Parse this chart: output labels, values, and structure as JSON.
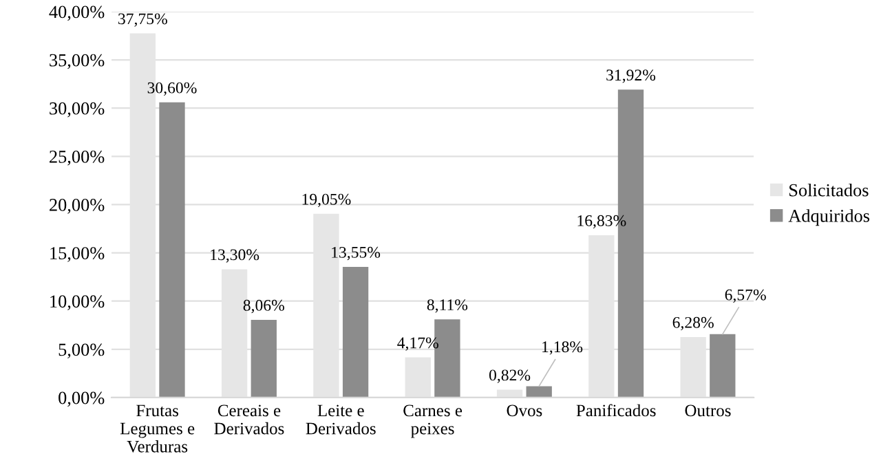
{
  "chart_data": {
    "type": "bar",
    "categories": [
      "Frutas\nLegumes e\nVerduras",
      "Cereais e\nDerivados",
      "Leite e\nDerivados",
      "Carnes e\npeixes",
      "Ovos",
      "Panificados",
      "Outros"
    ],
    "series": [
      {
        "name": "Solicitados",
        "color": "#e6e6e6",
        "values": [
          37.75,
          13.3,
          19.05,
          4.17,
          0.82,
          16.83,
          6.28
        ],
        "value_labels": [
          "37,75%",
          "13,30%",
          "19,05%",
          "4,17%",
          "0,82%",
          "16,83%",
          "6,28%"
        ]
      },
      {
        "name": "Adquiridos",
        "color": "#8c8c8c",
        "values": [
          30.6,
          8.06,
          13.55,
          8.11,
          1.18,
          31.92,
          6.57
        ],
        "value_labels": [
          "30,60%",
          "8,06%",
          "13,55%",
          "8,11%",
          "1,18%",
          "31,92%",
          "6,57%"
        ]
      }
    ],
    "ylim": [
      0,
      40
    ],
    "yticks": [
      {
        "value": 0,
        "label": "0,00%"
      },
      {
        "value": 5,
        "label": "5,00%"
      },
      {
        "value": 10,
        "label": "10,00%"
      },
      {
        "value": 15,
        "label": "15,00%"
      },
      {
        "value": 20,
        "label": "20,00%"
      },
      {
        "value": 25,
        "label": "25,00%"
      },
      {
        "value": 30,
        "label": "30,00%"
      },
      {
        "value": 35,
        "label": "35,00%"
      },
      {
        "value": 40,
        "label": "40,00%"
      }
    ],
    "grid": "y",
    "legend": "right"
  }
}
